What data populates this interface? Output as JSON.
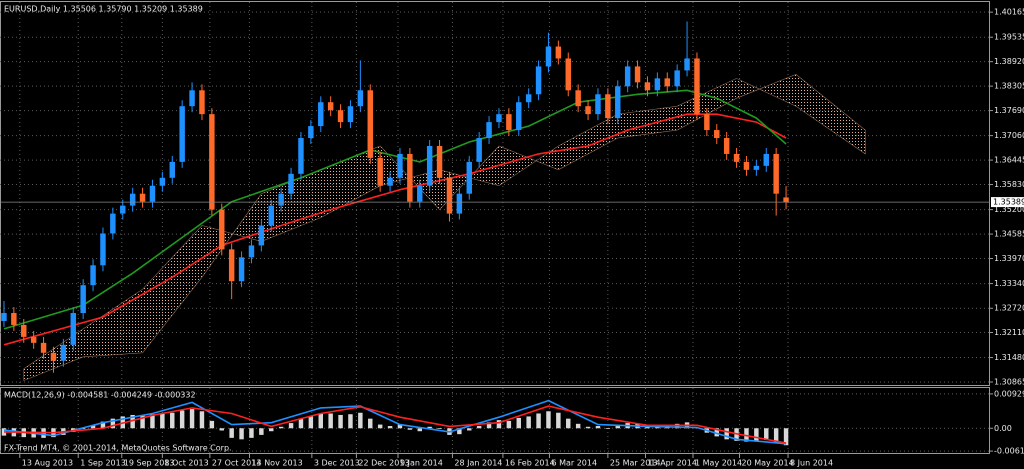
{
  "chart_data": [
    {
      "type": "candlestick",
      "title": "EURUSD,Daily  1.35506 1.35790 1.35209 1.35389",
      "up_color": "#1e90ff",
      "down_color": "#ff6a2a",
      "grid": true,
      "xlim": [
        -0.4,
        99.6
      ],
      "xticks": [
        {
          "value": 1.6,
          "label": "13 Aug 2013"
        },
        {
          "value": 7.5,
          "label": "1 Sep 2013"
        },
        {
          "value": 11.9,
          "label": "19 Sep 2013"
        },
        {
          "value": 16.0,
          "label": "8 Oct 2013"
        },
        {
          "value": 20.8,
          "label": "27 Oct 2013"
        },
        {
          "value": 24.8,
          "label": "14 Nov 2013"
        },
        {
          "value": 31.1,
          "label": "3 Dec 2013"
        },
        {
          "value": 35.6,
          "label": "22 Dec 2013"
        },
        {
          "value": 39.8,
          "label": "9 Jan 2014"
        },
        {
          "value": 45.3,
          "label": "28 Jan 2014"
        },
        {
          "value": 50.4,
          "label": "16 Feb 2014"
        },
        {
          "value": 55.1,
          "label": "6 Mar 2014"
        },
        {
          "value": 61.0,
          "label": "25 Mar 2014"
        },
        {
          "value": 64.8,
          "label": "13 Apr 2014"
        },
        {
          "value": 69.6,
          "label": "1 May 2014"
        },
        {
          "value": 74.3,
          "label": "20 May 2014"
        },
        {
          "value": 79.2,
          "label": "8 Jun 2014"
        }
      ],
      "ylim": [
        1.3079,
        1.4042
      ],
      "yticks": [
        1.40165,
        1.39535,
        {
          "value": 1.3892,
          "label": "1.38920"
        },
        1.38305,
        {
          "value": 1.3769,
          "label": "1.37690"
        },
        {
          "value": 1.3706,
          "label": "1.37060"
        },
        1.36445,
        {
          "value": 1.3583,
          "label": "1.35830"
        },
        {
          "value": 1.352,
          "label": "1.35200"
        },
        1.34585,
        {
          "value": 1.3397,
          "label": "1.33970"
        },
        {
          "value": 1.3334,
          "label": "1.33340"
        },
        {
          "value": 1.3272,
          "label": "1.32720"
        },
        {
          "value": 1.3211,
          "label": "1.32110"
        },
        {
          "value": 1.3148,
          "label": "1.31480"
        },
        1.30865
      ],
      "current_price": 1.35389,
      "candles": [
        [
          1.324,
          1.329,
          1.3225,
          1.326
        ],
        [
          1.326,
          1.3275,
          1.3215,
          1.323
        ],
        [
          1.323,
          1.3245,
          1.3185,
          1.32
        ],
        [
          1.32,
          1.3215,
          1.317,
          1.3185
        ],
        [
          1.3185,
          1.32,
          1.3145,
          1.316
        ],
        [
          1.316,
          1.3175,
          1.311,
          1.314
        ],
        [
          1.314,
          1.3195,
          1.3125,
          1.318
        ],
        [
          1.318,
          1.3275,
          1.3165,
          1.326
        ],
        [
          1.326,
          1.3345,
          1.3245,
          1.333
        ],
        [
          1.333,
          1.3395,
          1.3315,
          1.338
        ],
        [
          1.338,
          1.3475,
          1.3365,
          1.346
        ],
        [
          1.346,
          1.3525,
          1.3445,
          1.351
        ],
        [
          1.351,
          1.3545,
          1.3495,
          1.353
        ],
        [
          1.353,
          1.3575,
          1.3515,
          1.356
        ],
        [
          1.356,
          1.3575,
          1.3525,
          1.354
        ],
        [
          1.354,
          1.3595,
          1.3525,
          1.358
        ],
        [
          1.358,
          1.3615,
          1.3565,
          1.36
        ],
        [
          1.36,
          1.3655,
          1.3585,
          1.364
        ],
        [
          1.364,
          1.3795,
          1.3625,
          1.378
        ],
        [
          1.378,
          1.384,
          1.3765,
          1.382
        ],
        [
          1.382,
          1.3835,
          1.3745,
          1.376
        ],
        [
          1.376,
          1.3775,
          1.3505,
          1.352
        ],
        [
          1.352,
          1.3535,
          1.3405,
          1.342
        ],
        [
          1.342,
          1.3435,
          1.3295,
          1.334
        ],
        [
          1.334,
          1.3415,
          1.3325,
          1.34
        ],
        [
          1.34,
          1.3445,
          1.3385,
          1.343
        ],
        [
          1.343,
          1.3495,
          1.3415,
          1.348
        ],
        [
          1.348,
          1.3545,
          1.3465,
          1.353
        ],
        [
          1.353,
          1.3575,
          1.3515,
          1.356
        ],
        [
          1.356,
          1.3625,
          1.3545,
          1.361
        ],
        [
          1.361,
          1.3715,
          1.3595,
          1.37
        ],
        [
          1.37,
          1.3745,
          1.3685,
          1.373
        ],
        [
          1.373,
          1.3805,
          1.3715,
          1.379
        ],
        [
          1.379,
          1.3805,
          1.3755,
          1.377
        ],
        [
          1.377,
          1.3785,
          1.3725,
          1.374
        ],
        [
          1.374,
          1.3795,
          1.3725,
          1.378
        ],
        [
          1.378,
          1.3895,
          1.3765,
          1.382
        ],
        [
          1.382,
          1.3835,
          1.3635,
          1.365
        ],
        [
          1.365,
          1.3665,
          1.3565,
          1.358
        ],
        [
          1.358,
          1.3615,
          1.3565,
          1.36
        ],
        [
          1.36,
          1.3675,
          1.3585,
          1.366
        ],
        [
          1.366,
          1.3675,
          1.3525,
          1.354
        ],
        [
          1.354,
          1.3595,
          1.3525,
          1.358
        ],
        [
          1.358,
          1.3695,
          1.3565,
          1.368
        ],
        [
          1.368,
          1.3695,
          1.3585,
          1.36
        ],
        [
          1.36,
          1.3615,
          1.349,
          1.351
        ],
        [
          1.351,
          1.3575,
          1.3495,
          1.356
        ],
        [
          1.356,
          1.3655,
          1.3545,
          1.364
        ],
        [
          1.364,
          1.3715,
          1.3625,
          1.37
        ],
        [
          1.37,
          1.3755,
          1.3685,
          1.374
        ],
        [
          1.374,
          1.3775,
          1.3725,
          1.376
        ],
        [
          1.376,
          1.3775,
          1.3705,
          1.372
        ],
        [
          1.372,
          1.3805,
          1.3705,
          1.379
        ],
        [
          1.379,
          1.3825,
          1.3775,
          1.381
        ],
        [
          1.381,
          1.3895,
          1.3795,
          1.388
        ],
        [
          1.388,
          1.3965,
          1.3865,
          1.393
        ],
        [
          1.393,
          1.3945,
          1.3885,
          1.39
        ],
        [
          1.39,
          1.3915,
          1.3805,
          1.382
        ],
        [
          1.382,
          1.3835,
          1.3765,
          1.378
        ],
        [
          1.378,
          1.3795,
          1.3745,
          1.376
        ],
        [
          1.376,
          1.3825,
          1.3745,
          1.381
        ],
        [
          1.381,
          1.3825,
          1.3735,
          1.375
        ],
        [
          1.375,
          1.3845,
          1.3735,
          1.383
        ],
        [
          1.383,
          1.3895,
          1.3815,
          1.388
        ],
        [
          1.388,
          1.3895,
          1.3825,
          1.384
        ],
        [
          1.384,
          1.3855,
          1.3805,
          1.382
        ],
        [
          1.382,
          1.3865,
          1.3805,
          1.385
        ],
        [
          1.385,
          1.3865,
          1.3815,
          1.383
        ],
        [
          1.383,
          1.3885,
          1.3815,
          1.387
        ],
        [
          1.387,
          1.3993,
          1.3855,
          1.39
        ],
        [
          1.39,
          1.3915,
          1.3745,
          1.376
        ],
        [
          1.376,
          1.3775,
          1.3705,
          1.372
        ],
        [
          1.372,
          1.3735,
          1.3685,
          1.37
        ],
        [
          1.37,
          1.3715,
          1.3645,
          1.366
        ],
        [
          1.366,
          1.3675,
          1.3625,
          1.364
        ],
        [
          1.364,
          1.3655,
          1.3605,
          1.362
        ],
        [
          1.362,
          1.3645,
          1.3605,
          1.363
        ],
        [
          1.363,
          1.3675,
          1.3615,
          1.366
        ],
        [
          1.366,
          1.3675,
          1.3505,
          1.356
        ],
        [
          1.35506,
          1.3579,
          1.35209,
          1.35389
        ]
      ],
      "cloud": {
        "color": "#e8b090",
        "x": [
          2,
          8,
          14,
          20,
          26,
          32,
          38,
          44,
          50,
          56,
          62,
          68,
          74,
          80,
          87
        ],
        "span_a": [
          1.312,
          1.322,
          1.332,
          1.348,
          1.344,
          1.35,
          1.358,
          1.362,
          1.358,
          1.368,
          1.376,
          1.378,
          1.385,
          1.378,
          1.366
        ],
        "span_b": [
          1.309,
          1.315,
          1.316,
          1.335,
          1.356,
          1.362,
          1.368,
          1.352,
          1.368,
          1.362,
          1.37,
          1.372,
          1.38,
          1.386,
          1.372
        ]
      },
      "lines": [
        {
          "color": "#ff2020",
          "x": [
            0,
            10,
            17,
            22,
            28,
            33,
            40,
            47,
            54,
            59,
            63,
            69,
            72,
            76,
            79
          ],
          "values": [
            1.318,
            1.325,
            1.335,
            1.343,
            1.348,
            1.352,
            1.357,
            1.361,
            1.366,
            1.368,
            1.372,
            1.376,
            1.376,
            1.374,
            1.37
          ]
        },
        {
          "color": "#1f9a1f",
          "x": [
            0,
            8,
            13,
            23,
            30,
            37,
            42,
            47,
            53,
            58,
            64,
            69,
            72,
            76,
            79
          ],
          "values": [
            1.322,
            1.328,
            1.336,
            1.354,
            1.36,
            1.367,
            1.364,
            1.369,
            1.373,
            1.379,
            1.381,
            1.382,
            1.38,
            1.375,
            1.3685
          ]
        }
      ]
    },
    {
      "type": "bar",
      "title": "MACD(12,26,9) -0.004581 -0.004249 -0.000332",
      "footer": "FX-Trend MT4, © 2001-2014, MetaQuotes Software Corp.",
      "color": "#d8d8d8",
      "grid": true,
      "xlim": [
        -0.4,
        99.6
      ],
      "ylim": [
        -0.0067,
        0.0109
      ],
      "yticks": [
        0.009299,
        {
          "value": 0,
          "label": "0.00"
        },
        -0.006181
      ],
      "values": [
        -0.002,
        -0.0022,
        -0.0024,
        -0.0025,
        -0.0026,
        -0.0024,
        -0.0018,
        -0.001,
        -0.0002,
        0.0008,
        0.0018,
        0.0026,
        0.0032,
        0.0036,
        0.0036,
        0.0038,
        0.004,
        0.0042,
        0.0048,
        0.0052,
        0.0046,
        0.002,
        -0.0006,
        -0.0026,
        -0.003,
        -0.0026,
        -0.0018,
        -0.0008,
        0.0004,
        0.0014,
        0.0026,
        0.0032,
        0.004,
        0.004,
        0.0036,
        0.0038,
        0.0042,
        0.0026,
        0.001,
        0.0006,
        0.001,
        -0.0004,
        -0.0008,
        0.0004,
        -0.0002,
        -0.0018,
        -0.0016,
        -0.0006,
        0.0006,
        0.0016,
        0.0022,
        0.002,
        0.0028,
        0.0032,
        0.004,
        0.0046,
        0.0042,
        0.0026,
        0.0012,
        0.0004,
        0.0006,
        -0.0002,
        0.0006,
        0.0014,
        0.0012,
        0.0008,
        0.001,
        0.0008,
        0.0012,
        0.0016,
        0.0002,
        -0.0012,
        -0.0022,
        -0.003,
        -0.0034,
        -0.0036,
        -0.0036,
        -0.0032,
        -0.004,
        -0.0046
      ],
      "lines": [
        {
          "color": "#1e90ff",
          "x": [
            0,
            5,
            10,
            15,
            19,
            23,
            27,
            32,
            36,
            40,
            45,
            50,
            55,
            60,
            65,
            70,
            74,
            79
          ],
          "values": [
            -0.0005,
            -0.002,
            0.0015,
            0.004,
            0.007,
            0.001,
            0.0015,
            0.0055,
            0.006,
            0.001,
            -0.001,
            0.003,
            0.0075,
            0.001,
            0.0005,
            0.0002,
            -0.003,
            -0.0042
          ]
        },
        {
          "color": "#ff2020",
          "x": [
            0,
            5,
            10,
            15,
            19,
            23,
            27,
            32,
            36,
            40,
            45,
            50,
            55,
            60,
            65,
            70,
            74,
            79
          ],
          "values": [
            -0.001,
            -0.0012,
            0.0,
            0.0035,
            0.0055,
            0.004,
            0.0005,
            0.004,
            0.0058,
            0.003,
            0.0005,
            0.0015,
            0.006,
            0.003,
            0.0008,
            0.0008,
            -0.0015,
            -0.004
          ]
        }
      ]
    }
  ]
}
